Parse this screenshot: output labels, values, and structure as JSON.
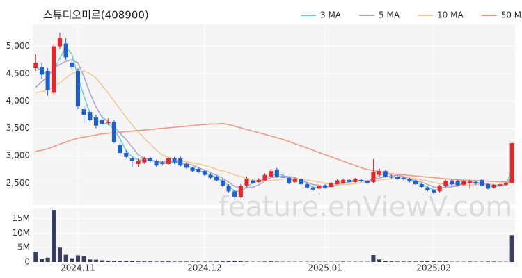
{
  "chart_data": {
    "type": "candlestick",
    "title": "스튜디오미르(408900)",
    "watermark": "feature.enViewV.com",
    "categories": [
      null,
      null,
      null,
      null,
      null,
      null,
      null,
      "2024.11",
      null,
      null,
      null,
      null,
      null,
      null,
      null,
      null,
      null,
      null,
      null,
      null,
      null,
      null,
      null,
      null,
      null,
      null,
      null,
      null,
      "2024.12",
      null,
      null,
      null,
      null,
      null,
      null,
      null,
      null,
      null,
      null,
      null,
      null,
      null,
      null,
      null,
      null,
      null,
      null,
      null,
      "2025.01",
      null,
      null,
      null,
      null,
      null,
      null,
      null,
      null,
      null,
      null,
      null,
      null,
      null,
      null,
      null,
      null,
      null,
      "2025.02",
      null,
      null,
      null,
      null,
      null,
      null,
      null,
      null,
      null,
      null,
      null,
      null,
      null
    ],
    "open": [
      4600,
      4620,
      4550,
      4150,
      5000,
      5050,
      4700,
      4550,
      3850,
      3800,
      3700,
      3650,
      3600,
      3620,
      3200,
      3050,
      2950,
      2850,
      2880,
      2950,
      2900,
      2880,
      2850,
      2950,
      2950,
      2850,
      2780,
      2760,
      2720,
      2650,
      2620,
      2550,
      2450,
      2350,
      2250,
      2450,
      2550,
      2520,
      2550,
      2620,
      2750,
      2620,
      2600,
      2520,
      2580,
      2480,
      2420,
      2400,
      2460,
      2430,
      2480,
      2500,
      2560,
      2520,
      2560,
      2540,
      2520,
      2650,
      2720,
      2620,
      2620,
      2600,
      2580,
      2540,
      2480,
      2420,
      2380,
      2350,
      2450,
      2550,
      2540,
      2470,
      2500,
      2520,
      2560,
      2480,
      2420,
      2450,
      2470,
      2500
    ],
    "high": [
      4850,
      4700,
      4600,
      5050,
      5250,
      5150,
      4750,
      4600,
      3900,
      3850,
      3750,
      3800,
      3680,
      3650,
      3250,
      3100,
      3000,
      2950,
      2980,
      2980,
      2930,
      2900,
      2970,
      2980,
      2990,
      2880,
      2800,
      2780,
      2750,
      2680,
      2640,
      2580,
      2480,
      2380,
      2480,
      2620,
      2580,
      2590,
      2680,
      2760,
      2780,
      2660,
      2620,
      2600,
      2600,
      2500,
      2440,
      2470,
      2480,
      2520,
      2570,
      2580,
      2580,
      2600,
      2580,
      2560,
      2940,
      2760,
      2740,
      2650,
      2640,
      2620,
      2600,
      2560,
      2500,
      2440,
      2400,
      2470,
      2560,
      2580,
      2560,
      2560,
      2560,
      2540,
      2580,
      2500,
      2480,
      2500,
      2520,
      3250
    ],
    "low": [
      4550,
      4400,
      4100,
      4120,
      4950,
      4750,
      4580,
      3850,
      3600,
      3620,
      3500,
      3540,
      3560,
      3230,
      3000,
      2950,
      2800,
      2800,
      2850,
      2880,
      2800,
      2820,
      2830,
      2850,
      2800,
      2760,
      2700,
      2680,
      2630,
      2580,
      2530,
      2430,
      2330,
      2220,
      2230,
      2430,
      2480,
      2500,
      2540,
      2600,
      2600,
      2570,
      2480,
      2500,
      2460,
      2400,
      2350,
      2380,
      2400,
      2420,
      2470,
      2490,
      2500,
      2510,
      2520,
      2480,
      2490,
      2620,
      2600,
      2580,
      2560,
      2550,
      2510,
      2460,
      2410,
      2350,
      2300,
      2330,
      2430,
      2460,
      2440,
      2450,
      2400,
      2470,
      2430,
      2380,
      2400,
      2440,
      2460,
      2480
    ],
    "close": [
      4700,
      4480,
      4200,
      5000,
      5150,
      4800,
      4620,
      3900,
      3750,
      3650,
      3550,
      3580,
      3620,
      3250,
      3050,
      2980,
      2900,
      2900,
      2950,
      2900,
      2820,
      2850,
      2950,
      2880,
      2820,
      2780,
      2720,
      2700,
      2650,
      2600,
      2550,
      2450,
      2350,
      2250,
      2450,
      2580,
      2500,
      2560,
      2650,
      2720,
      2620,
      2600,
      2500,
      2580,
      2480,
      2420,
      2380,
      2450,
      2420,
      2500,
      2550,
      2560,
      2520,
      2580,
      2530,
      2500,
      2700,
      2720,
      2620,
      2600,
      2580,
      2570,
      2530,
      2480,
      2430,
      2370,
      2330,
      2450,
      2540,
      2480,
      2460,
      2540,
      2530,
      2490,
      2450,
      2400,
      2470,
      2480,
      2500,
      3230
    ],
    "volume": [
      3500000,
      1000000,
      1500000,
      18000000,
      5000000,
      2500000,
      1300000,
      2300000,
      2000000,
      900000,
      800000,
      600000,
      500000,
      400000,
      350000,
      300000,
      250000,
      200000,
      200000,
      200000,
      150000,
      200000,
      200000,
      150000,
      150000,
      150000,
      150000,
      150000,
      150000,
      150000,
      200000,
      200000,
      250000,
      300000,
      250000,
      150000,
      100000,
      100000,
      150000,
      200000,
      150000,
      100000,
      100000,
      100000,
      100000,
      100000,
      100000,
      100000,
      100000,
      100000,
      100000,
      150000,
      100000,
      100000,
      100000,
      100000,
      2400000,
      900000,
      300000,
      200000,
      150000,
      150000,
      150000,
      150000,
      200000,
      250000,
      250000,
      200000,
      200000,
      100000,
      100000,
      100000,
      150000,
      100000,
      100000,
      150000,
      150000,
      100000,
      100000,
      9300000
    ],
    "ma": [
      {
        "name": "3 MA",
        "color": "#6fd0d6",
        "values": [
          4620,
          4560,
          4460,
          4560,
          4783,
          4983,
          4857,
          4440,
          4090,
          3767,
          3650,
          3593,
          3583,
          3483,
          3307,
          3093,
          2977,
          2927,
          2917,
          2917,
          2890,
          2857,
          2873,
          2893,
          2883,
          2827,
          2773,
          2733,
          2690,
          2650,
          2600,
          2533,
          2450,
          2350,
          2350,
          2427,
          2510,
          2547,
          2570,
          2643,
          2663,
          2647,
          2573,
          2560,
          2520,
          2493,
          2427,
          2417,
          2417,
          2457,
          2490,
          2537,
          2543,
          2553,
          2543,
          2537,
          2577,
          2640,
          2680,
          2647,
          2600,
          2583,
          2560,
          2527,
          2480,
          2427,
          2377,
          2383,
          2440,
          2490,
          2493,
          2493,
          2510,
          2520,
          2490,
          2447,
          2440,
          2450,
          2483,
          2737
        ]
      },
      {
        "name": "5 MA",
        "color": "#b3a3cf",
        "values": [
          4250,
          4350,
          4450,
          4600,
          4666,
          4726,
          4754,
          4694,
          4444,
          4144,
          3894,
          3706,
          3630,
          3530,
          3410,
          3296,
          3160,
          3016,
          2956,
          2926,
          2894,
          2884,
          2894,
          2880,
          2864,
          2856,
          2830,
          2780,
          2734,
          2690,
          2644,
          2590,
          2520,
          2440,
          2410,
          2416,
          2426,
          2468,
          2548,
          2602,
          2610,
          2630,
          2618,
          2604,
          2556,
          2516,
          2472,
          2462,
          2430,
          2434,
          2460,
          2496,
          2520,
          2542,
          2548,
          2538,
          2566,
          2596,
          2614,
          2628,
          2644,
          2618,
          2580,
          2552,
          2518,
          2476,
          2428,
          2412,
          2424,
          2434,
          2450,
          2494,
          2510,
          2500,
          2494,
          2478,
          2470,
          2458,
          2460,
          2616
        ]
      },
      {
        "name": "10 MA",
        "color": "#f5c993",
        "values": [
          4150,
          4170,
          4200,
          4260,
          4330,
          4420,
          4500,
          4530,
          4550,
          4500,
          4420,
          4280,
          4150,
          4000,
          3850,
          3700,
          3560,
          3440,
          3320,
          3210,
          3100,
          3020,
          2970,
          2940,
          2910,
          2890,
          2870,
          2850,
          2820,
          2790,
          2750,
          2720,
          2690,
          2650,
          2620,
          2590,
          2560,
          2540,
          2540,
          2550,
          2560,
          2570,
          2580,
          2580,
          2570,
          2560,
          2540,
          2520,
          2500,
          2480,
          2470,
          2470,
          2480,
          2490,
          2510,
          2520,
          2540,
          2560,
          2570,
          2580,
          2580,
          2590,
          2590,
          2580,
          2560,
          2540,
          2510,
          2490,
          2480,
          2470,
          2470,
          2460,
          2460,
          2470,
          2470,
          2470,
          2470,
          2470,
          2480,
          2550
        ]
      },
      {
        "name": "50 MA",
        "color": "#f29a83",
        "values": [
          3080,
          3100,
          3130,
          3170,
          3210,
          3250,
          3290,
          3320,
          3340,
          3360,
          3380,
          3400,
          3410,
          3420,
          3430,
          3440,
          3450,
          3460,
          3470,
          3480,
          3490,
          3500,
          3510,
          3520,
          3530,
          3540,
          3550,
          3560,
          3570,
          3580,
          3580,
          3590,
          3570,
          3540,
          3510,
          3480,
          3450,
          3420,
          3390,
          3360,
          3330,
          3300,
          3260,
          3220,
          3180,
          3140,
          3100,
          3060,
          3020,
          2980,
          2940,
          2900,
          2860,
          2820,
          2780,
          2750,
          2730,
          2710,
          2690,
          2670,
          2660,
          2650,
          2640,
          2630,
          2620,
          2610,
          2600,
          2590,
          2580,
          2570,
          2560,
          2555,
          2550,
          2545,
          2540,
          2535,
          2530,
          2525,
          2520,
          2520
        ]
      }
    ],
    "up_color": "#e8262a",
    "down_color": "#1f5fd6",
    "volume_color": "#3b3d62",
    "ylim": [
      2100,
      5400
    ],
    "yticks": [
      {
        "value": 2500,
        "label": "2,500"
      },
      {
        "value": 3000,
        "label": "3,000"
      },
      {
        "value": 3500,
        "label": "3,500"
      },
      {
        "value": 4000,
        "label": "4,000"
      },
      {
        "value": 4500,
        "label": "4,500"
      },
      {
        "value": 5000,
        "label": "5,000"
      }
    ],
    "volume_ylim": [
      0,
      18500000
    ],
    "volume_yticks": [
      0,
      {
        "value": 5000000,
        "label": "5M"
      },
      {
        "value": 10000000,
        "label": "10M"
      },
      {
        "value": 15000000,
        "label": "15M"
      }
    ],
    "grid": true
  }
}
